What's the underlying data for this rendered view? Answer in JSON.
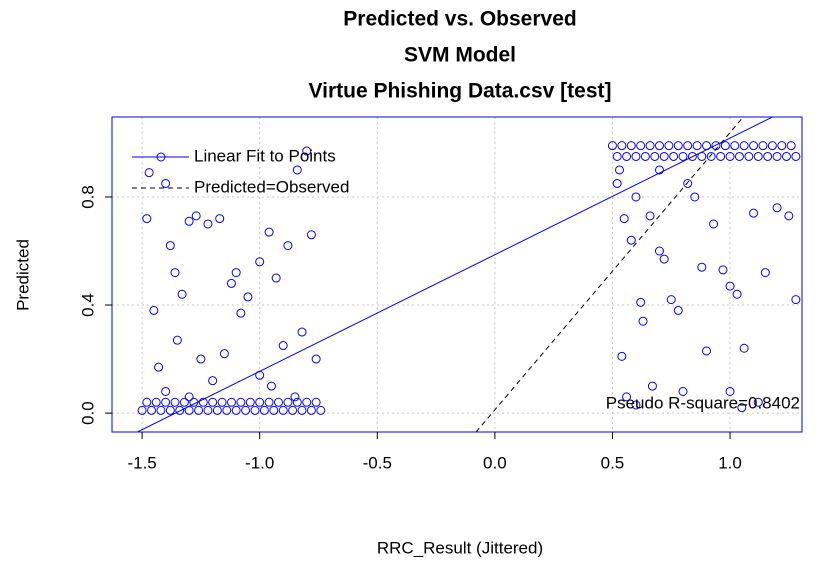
{
  "chart_data": {
    "type": "scatter",
    "title": "Predicted vs. Observed",
    "subtitle": "SVM Model",
    "subtitle2": "Virtue Phishing Data.csv [test]",
    "xlabel": "RRC_Result (Jittered)",
    "ylabel": "Predicted",
    "color": "#0000ff",
    "x": [
      -1.5,
      -1.46,
      -1.42,
      -1.38,
      -1.34,
      -1.3,
      -1.26,
      -1.22,
      -1.18,
      -1.14,
      -1.1,
      -1.06,
      -1.02,
      -0.98,
      -0.94,
      -0.9,
      -0.86,
      -0.82,
      -0.78,
      -0.74,
      -1.48,
      -1.44,
      -1.4,
      -1.36,
      -1.32,
      -1.28,
      -1.24,
      -1.2,
      -1.16,
      -1.12,
      -1.08,
      -1.04,
      -1.0,
      -0.96,
      -0.92,
      -0.88,
      -0.84,
      -0.8,
      -0.76,
      -1.48,
      -1.47,
      -1.4,
      -1.38,
      -1.36,
      -1.33,
      -1.3,
      -1.27,
      -1.22,
      -1.17,
      -1.12,
      -1.1,
      -1.08,
      -1.05,
      -1.0,
      -0.96,
      -0.93,
      -0.88,
      -0.84,
      -0.8,
      -0.78,
      -0.82,
      -0.9,
      -1.15,
      -1.25,
      -1.45,
      -1.43,
      -1.35,
      -0.76,
      -1.0,
      -0.95,
      -1.2,
      -1.4,
      -0.85,
      -1.3,
      0.5,
      0.54,
      0.58,
      0.62,
      0.66,
      0.7,
      0.74,
      0.78,
      0.82,
      0.86,
      0.9,
      0.94,
      0.98,
      1.02,
      1.06,
      1.1,
      1.14,
      1.18,
      1.22,
      1.26,
      0.52,
      0.56,
      0.6,
      0.64,
      0.68,
      0.72,
      0.76,
      0.8,
      0.84,
      0.88,
      0.92,
      0.96,
      1.0,
      1.04,
      1.08,
      1.12,
      1.16,
      1.2,
      1.24,
      1.28,
      0.52,
      0.55,
      0.58,
      0.6,
      0.62,
      0.63,
      0.66,
      0.7,
      0.72,
      0.75,
      0.78,
      0.82,
      0.85,
      0.88,
      0.9,
      0.93,
      0.97,
      1.0,
      1.03,
      1.06,
      1.1,
      1.15,
      1.2,
      1.25,
      1.28,
      0.54,
      0.56,
      0.6,
      0.67,
      0.8,
      1.0,
      1.05,
      1.12,
      0.53,
      0.7
    ],
    "values": [
      0.01,
      0.01,
      0.01,
      0.01,
      0.01,
      0.01,
      0.01,
      0.01,
      0.01,
      0.01,
      0.01,
      0.01,
      0.01,
      0.01,
      0.01,
      0.01,
      0.01,
      0.01,
      0.01,
      0.01,
      0.04,
      0.04,
      0.04,
      0.04,
      0.04,
      0.04,
      0.04,
      0.04,
      0.04,
      0.04,
      0.04,
      0.04,
      0.04,
      0.04,
      0.04,
      0.04,
      0.04,
      0.04,
      0.04,
      0.72,
      0.89,
      0.85,
      0.62,
      0.52,
      0.44,
      0.71,
      0.73,
      0.7,
      0.72,
      0.48,
      0.52,
      0.37,
      0.43,
      0.56,
      0.67,
      0.5,
      0.62,
      0.9,
      0.97,
      0.66,
      0.3,
      0.25,
      0.22,
      0.2,
      0.38,
      0.17,
      0.27,
      0.2,
      0.14,
      0.1,
      0.12,
      0.08,
      0.06,
      0.06,
      0.99,
      0.99,
      0.99,
      0.99,
      0.99,
      0.99,
      0.99,
      0.99,
      0.99,
      0.99,
      0.99,
      0.99,
      0.99,
      0.99,
      0.99,
      0.99,
      0.99,
      0.99,
      0.99,
      0.99,
      0.95,
      0.95,
      0.95,
      0.95,
      0.95,
      0.95,
      0.95,
      0.95,
      0.95,
      0.95,
      0.95,
      0.95,
      0.95,
      0.95,
      0.95,
      0.95,
      0.95,
      0.95,
      0.95,
      0.95,
      0.85,
      0.72,
      0.64,
      0.8,
      0.41,
      0.34,
      0.73,
      0.6,
      0.57,
      0.42,
      0.38,
      0.85,
      0.8,
      0.54,
      0.23,
      0.7,
      0.53,
      0.47,
      0.44,
      0.24,
      0.74,
      0.52,
      0.76,
      0.73,
      0.42,
      0.21,
      0.06,
      0.03,
      0.1,
      0.08,
      0.08,
      0.02,
      0.04,
      0.9,
      0.9
    ],
    "lines": [
      {
        "name": "Linear Fit to Points",
        "color": "#0000ff",
        "dashed": false,
        "x": [
          -1.52,
          1.19
        ],
        "y": [
          -0.07,
          1.1
        ]
      },
      {
        "name": "Predicted=Observed",
        "color": "#000000",
        "dashed": true,
        "x": [
          -0.08,
          1.06
        ],
        "y": [
          -0.07,
          1.1
        ]
      }
    ],
    "annotation": "Pseudo R-square=0.8402",
    "xlim": [
      -1.628,
      1.306
    ],
    "ylim": [
      -0.07,
      1.096
    ],
    "xticks": [
      -1.5,
      {
        "value": -1.0,
        "label": "-1.0"
      },
      -0.5,
      {
        "value": 0.0,
        "label": "0.0"
      },
      0.5,
      {
        "value": 1.0,
        "label": "1.0"
      }
    ],
    "yticks": [
      {
        "value": 0.0,
        "label": "0.0"
      },
      0.4,
      0.8
    ],
    "grid": true,
    "legend": "top-left"
  }
}
